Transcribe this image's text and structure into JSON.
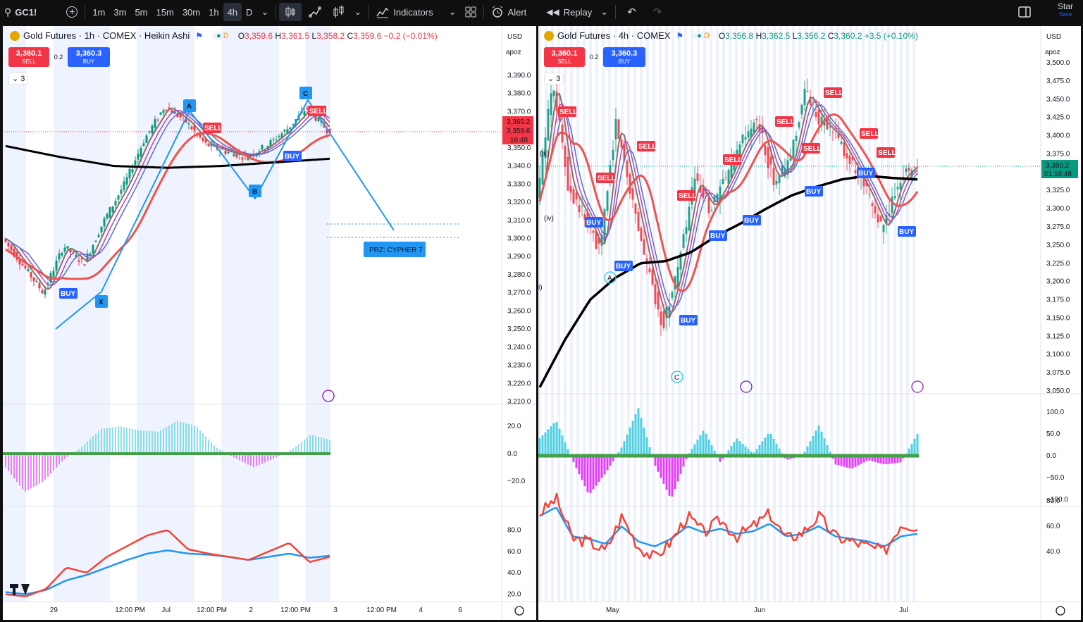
{
  "toolbar": {
    "symbol": "GC1!",
    "intervals": [
      "1m",
      "3m",
      "5m",
      "15m",
      "30m",
      "1h",
      "4h",
      "D"
    ],
    "active_interval": "4h",
    "indicators_label": "Indicators",
    "alert_label": "Alert",
    "replay_label": "Replay",
    "star_label": "Star",
    "save_label": "Save"
  },
  "colors": {
    "up": "#089981",
    "down": "#f23645",
    "accent": "#2962ff",
    "pattern": "#2196f3"
  },
  "left": {
    "title": "Gold Futures · 1h · COMEX · Heikin Ashi",
    "ohlc": {
      "o": "3,359.6",
      "h": "3,361.5",
      "l": "3,358.2",
      "c": "3,359.6",
      "chg": "−0.2 (−0.01%)"
    },
    "sell_price": "3,360.1",
    "buy_price": "3,360.3",
    "spread": "0.2",
    "sell_label": "SELL",
    "buy_label": "BUY",
    "indicator_count": "3",
    "currency": "USD",
    "scale_mode": "apoz",
    "price_ticks": [
      "3,390.0",
      "3,380.0",
      "3,370.0",
      "3,360.0",
      "3,350.0",
      "3,340.0",
      "3,330.0",
      "3,320.0",
      "3,310.0",
      "3,300.0",
      "3,290.0",
      "3,280.0",
      "3,270.0",
      "3,260.0",
      "3,250.0",
      "3,240.0",
      "3,230.0",
      "3,220.0",
      "3,210.0"
    ],
    "last_price": "3,360.2",
    "prev_price": "3,359.6",
    "countdown": "16:48",
    "pattern_points": [
      "X",
      "A",
      "B",
      "C"
    ],
    "prz_label": "PRZ: CYPHER 7",
    "osc_ticks": [
      "20.0",
      "0.0",
      "−20.0"
    ],
    "rsi_ticks": [
      "80.0",
      "60.0",
      "40.0",
      "20.0"
    ],
    "time_ticks": [
      "29",
      "12:00 PM",
      "Jul",
      "12:00 PM",
      "2",
      "12:00 PM",
      "3",
      "12:00 PM",
      "4",
      "6"
    ]
  },
  "right": {
    "title": "Gold Futures · 4h · COMEX",
    "ohlc": {
      "o": "3,356.8",
      "h": "3,362.5",
      "l": "3,356.2",
      "c": "3,360.2",
      "chg": "+3.5 (+0.10%)"
    },
    "sell_price": "3,360.1",
    "buy_price": "3,360.3",
    "spread": "0.2",
    "sell_label": "SELL",
    "buy_label": "BUY",
    "indicator_count": "3",
    "currency": "USD",
    "scale_mode": "apoz",
    "price_ticks": [
      "3,500.0",
      "3,475.0",
      "3,450.0",
      "3,425.0",
      "3,400.0",
      "3,375.0",
      "3,350.0",
      "3,325.0",
      "3,300.0",
      "3,275.0",
      "3,250.0",
      "3,225.0",
      "3,200.0",
      "3,175.0",
      "3,150.0",
      "3,125.0",
      "3,100.0",
      "3,075.0",
      "3,050.0"
    ],
    "last_price": "3,360.2",
    "countdown": "01:16:48",
    "wave_labels": [
      "(iii)",
      "(iv)",
      "i)",
      "A",
      "C"
    ],
    "osc_ticks": [
      "100.0",
      "50.0",
      "0.0",
      "−50.0",
      "−100.0"
    ],
    "rsi_ticks": [
      "80.0",
      "60.0",
      "40.0"
    ],
    "time_ticks": [
      "May",
      "Jun",
      "Jul"
    ]
  }
}
